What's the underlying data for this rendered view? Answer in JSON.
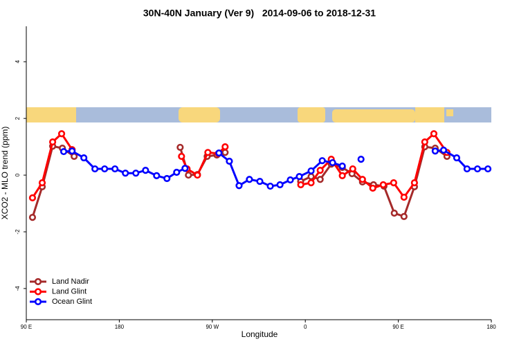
{
  "chart_data": {
    "type": "line",
    "title": "30N-40N January (Ver 9)   2014-09-06 to 2018-12-31",
    "x_label": "Longitude",
    "y_label": "XCO2 - MLO trend (ppm)",
    "xlim": [
      90,
      540
    ],
    "xticks": [
      {
        "value": 90,
        "label": "90 E"
      },
      {
        "value": 180,
        "label": "180"
      },
      {
        "value": 270,
        "label": "90 W"
      },
      {
        "value": 360,
        "label": "0"
      },
      {
        "value": 450,
        "label": "90 E"
      },
      {
        "value": 540,
        "label": "180"
      }
    ],
    "ylim": [
      -5.1,
      5.25
    ],
    "yticks": [
      -4,
      -2,
      0,
      2,
      4
    ],
    "legend": "bottom-left",
    "series": [
      {
        "name": "Land Nadir",
        "color": "#a52a2a",
        "x": [
          96,
          105.4,
          115.5,
          124.9,
          136.3,
          null,
          238.9,
          246.9,
          255.6,
          265,
          274.4,
          282.4,
          null,
          355.5,
          365.6,
          374.4,
          385.1,
          395.8,
          405.2,
          415.3,
          426,
          436.1,
          446.1,
          455.5,
          465.6,
          475.6,
          485.7,
          497.1
        ],
        "values": [
          -1.49,
          -0.41,
          1.02,
          0.95,
          0.66,
          null,
          0.98,
          0,
          0.02,
          0.66,
          0.71,
          0.8,
          null,
          -0.22,
          -0.05,
          -0.15,
          0.39,
          0.27,
          0.05,
          -0.24,
          -0.34,
          -0.39,
          -1.34,
          -1.46,
          -0.41,
          1.0,
          0.95,
          0.66
        ]
      },
      {
        "name": "Land Glint",
        "color": "#ff0000",
        "x": [
          96,
          105.4,
          115.5,
          124.2,
          134.3,
          null,
          240.2,
          245.6,
          255.6,
          265.7,
          275.8,
          282.4,
          null,
          355.6,
          365.6,
          374.4,
          385.1,
          395.8,
          405.9,
          415.3,
          425.3,
          435.4,
          445.5,
          455.5,
          465.6,
          475.6,
          484.4,
          497.1
        ],
        "values": [
          -0.8,
          -0.27,
          1.17,
          1.46,
          0.9,
          null,
          0.66,
          0.22,
          0,
          0.8,
          0.76,
          1.0,
          null,
          -0.34,
          -0.27,
          0.17,
          0.56,
          -0.02,
          0.22,
          -0.15,
          -0.46,
          -0.34,
          -0.27,
          -0.78,
          -0.27,
          1.17,
          1.46,
          0.8
        ]
      },
      {
        "name": "Ocean Glint",
        "color": "#0000ff",
        "x": [
          126.2,
          134.3,
          145.7,
          156.4,
          165.8,
          175.8,
          185.9,
          196,
          205.4,
          216.1,
          226.1,
          235.5,
          243.6,
          null,
          276.4,
          286.5,
          295.9,
          305.9,
          316,
          326.1,
          335.5,
          345.5,
          354.2,
          365.6,
          376.4,
          386.4,
          395.8,
          null,
          413.9,
          null,
          485.7,
          493.8,
          506.5,
          516.5,
          526.6,
          536.7
        ],
        "values": [
          0.83,
          0.85,
          0.61,
          0.22,
          0.22,
          0.22,
          0.07,
          0.07,
          0.17,
          -0.02,
          -0.12,
          0.1,
          0.24,
          null,
          0.78,
          0.49,
          -0.37,
          -0.15,
          -0.22,
          -0.39,
          -0.34,
          -0.17,
          -0.05,
          0.15,
          0.51,
          0.44,
          0.32,
          null,
          0.56,
          null,
          0.85,
          0.88,
          0.61,
          0.22,
          0.22,
          0.22
        ]
      }
    ]
  }
}
